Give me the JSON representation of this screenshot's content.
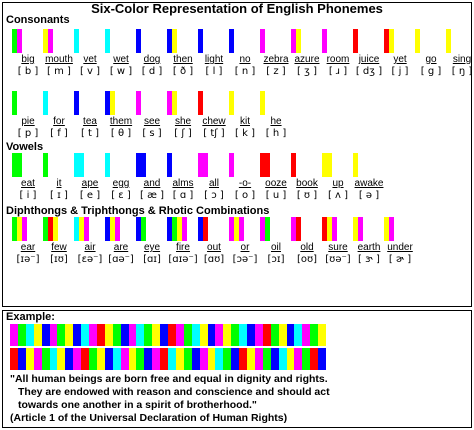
{
  "title": "Six-Color Representation of English Phonemes",
  "colors": {
    "R": "#ff0000",
    "M": "#ff00ff",
    "B": "#0000ff",
    "C": "#00ffff",
    "G": "#00ff00",
    "Y": "#ffff00"
  },
  "sections": [
    {
      "heading": "Consonants",
      "rows": [
        {
          "items": [
            {
              "word": "big",
              "ipa": "[ b ]",
              "bars": "GM"
            },
            {
              "word": "mouth",
              "ipa": "[ m ]",
              "bars": "YM"
            },
            {
              "word": "vet",
              "ipa": "[ v ]",
              "bars": "C"
            },
            {
              "word": "wet",
              "ipa": "[ w ]",
              "bars": "C"
            },
            {
              "word": "dog",
              "ipa": "[ d ]",
              "bars": "B"
            },
            {
              "word": "then",
              "ipa": "[ ð ]",
              "bars": "BY"
            },
            {
              "word": "light",
              "ipa": "[ l ]",
              "bars": "B"
            },
            {
              "word": "no",
              "ipa": "[ n ]",
              "bars": "B"
            },
            {
              "word": "zebra",
              "ipa": "[ z ]",
              "bars": "M"
            },
            {
              "word": "azure",
              "ipa": "[ ʒ ]",
              "bars": "MY"
            },
            {
              "word": "room",
              "ipa": "[ ɹ ]",
              "bars": "M"
            },
            {
              "word": "juice",
              "ipa": "[ dʒ ]",
              "bars": "R"
            },
            {
              "word": "yet",
              "ipa": "[ j ]",
              "bars": "RY"
            },
            {
              "word": "go",
              "ipa": "[ g ]",
              "bars": "Y"
            },
            {
              "word": "sing",
              "ipa": "[ ŋ ]",
              "bars": "Y"
            }
          ]
        },
        {
          "items": [
            {
              "word": "pie",
              "ipa": "[ p ]",
              "bars": "G"
            },
            {
              "word": "for",
              "ipa": "[ f ]",
              "bars": "C"
            },
            {
              "word": "tea",
              "ipa": "[ t ]",
              "bars": "B"
            },
            {
              "word": "them",
              "ipa": "[ θ ]",
              "bars": "BY"
            },
            {
              "word": "see",
              "ipa": "[ s ]",
              "bars": "M"
            },
            {
              "word": "she",
              "ipa": "[ ʃ ]",
              "bars": "MY"
            },
            {
              "word": "chew",
              "ipa": "[ tʃ ]",
              "bars": "R"
            },
            {
              "word": "kit",
              "ipa": "[ k ]",
              "bars": "Y"
            },
            {
              "word": "he",
              "ipa": "[ h ]",
              "bars": "Y"
            }
          ]
        }
      ]
    },
    {
      "heading": "Vowels",
      "rows": [
        {
          "items": [
            {
              "word": "eat",
              "ipa": "[ i ]",
              "bars": "GG"
            },
            {
              "word": "it",
              "ipa": "[ ɪ ]",
              "bars": "G"
            },
            {
              "word": "ape",
              "ipa": "[ e ]",
              "bars": "CC"
            },
            {
              "word": "egg",
              "ipa": "[ ɛ ]",
              "bars": "C"
            },
            {
              "word": "and",
              "ipa": "[ æ ]",
              "bars": "BB"
            },
            {
              "word": "alms",
              "ipa": "[ ɑ ]",
              "bars": "B"
            },
            {
              "word": "all",
              "ipa": "[ ɔ ]",
              "bars": "MM"
            },
            {
              "word": "-o-",
              "ipa": "[ o ]",
              "bars": "M"
            },
            {
              "word": "ooze",
              "ipa": "[ u ]",
              "bars": "RR"
            },
            {
              "word": "book",
              "ipa": "[ ʊ ]",
              "bars": "R"
            },
            {
              "word": "up",
              "ipa": "[ ʌ ]",
              "bars": "YY"
            },
            {
              "word": "awake",
              "ipa": "[ ə ]",
              "bars": "Y"
            }
          ]
        }
      ]
    },
    {
      "heading": "Diphthongs & Triphthongs & Rhotic Combinations",
      "rows": [
        {
          "items": [
            {
              "word": "ear",
              "ipa": "[ɪə⁻]",
              "bars": "GYM"
            },
            {
              "word": "few",
              "ipa": "[ɪʊ]",
              "bars": "GRY"
            },
            {
              "word": "air",
              "ipa": "[ɛə⁻]",
              "bars": "CYM"
            },
            {
              "word": "are",
              "ipa": "[ɑə⁻]",
              "bars": "BYM"
            },
            {
              "word": "eye",
              "ipa": "[ɑɪ]",
              "bars": "BG"
            },
            {
              "word": "fire",
              "ipa": "[ɑɪə⁻]",
              "bars": "BGYM"
            },
            {
              "word": "out",
              "ipa": "[ɑʊ]",
              "bars": "BR"
            },
            {
              "word": "or",
              "ipa": "[ɔə⁻]",
              "bars": "MYM"
            },
            {
              "word": "oil",
              "ipa": "[ɔɪ]",
              "bars": "MG"
            },
            {
              "word": "old",
              "ipa": "[oʊ]",
              "bars": "MR"
            },
            {
              "word": "sure",
              "ipa": "[ʊə⁻]",
              "bars": "RYM"
            },
            {
              "word": "earth",
              "ipa": "[ ɝ ]",
              "bars": "YM"
            },
            {
              "word": "under",
              "ipa": "[ ɚ ]",
              "bars": "YM"
            }
          ]
        }
      ]
    }
  ],
  "example": {
    "heading": "Example:",
    "strips": [
      "MGCYBMGYBCMRYGBMCGYBRMGCYBMYGCBMRGYBCMGY",
      "RBYMGCYBMRGYBCMYGBMRCYGBMYCGBRYMGBCYMGRB",
      "BGYMCBRYGMBCYGMRBYCGMBYRGCMBYGMCRBYGMB"
    ],
    "quote_lines": [
      "\"All human beings are born free and equal in dignity and rights.",
      "They are endowed with reason and conscience and should act",
      "towards one another in a spirit of brotherhood.\"",
      "(Article 1 of the Universal Declaration of Human Rights)"
    ]
  }
}
